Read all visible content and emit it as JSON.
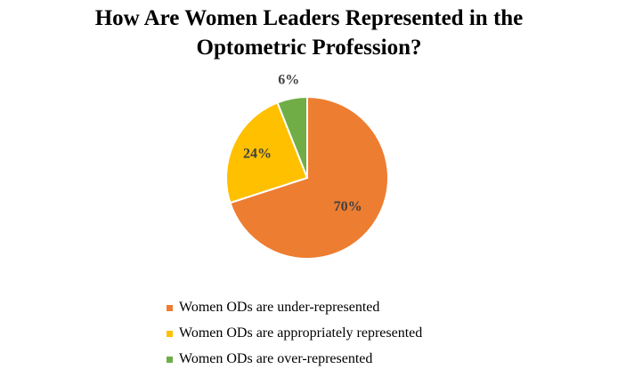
{
  "chart_data": {
    "type": "pie",
    "title": "How Are Women Leaders Represented in the Optometric Profession?",
    "title_lines": [
      "How Are Women Leaders Represented in the",
      "Optometric Profession?"
    ],
    "slices": [
      {
        "name": "Women ODs are under-represented",
        "value": 70,
        "label": "70%",
        "color": "#ED7D31"
      },
      {
        "name": "Women ODs are appropriately represented",
        "value": 24,
        "label": "24%",
        "color": "#FFC000"
      },
      {
        "name": "Women ODs are over-represented",
        "value": 6,
        "label": "6%",
        "color": "#70AD47"
      }
    ],
    "legend_position": "bottom",
    "start": "12 o'clock, clockwise"
  }
}
